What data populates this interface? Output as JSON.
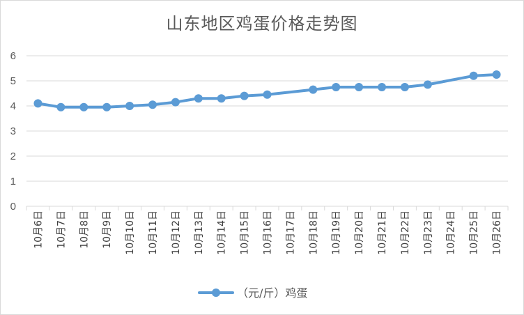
{
  "chart_data": {
    "type": "line",
    "title": "山东地区鸡蛋价格走势图",
    "categories": [
      "10月6日",
      "10月7日",
      "10月8日",
      "10月9日",
      "10月10日",
      "10月11日",
      "10月12日",
      "10月13日",
      "10月14日",
      "10月15日",
      "10月16日",
      "10月17日",
      "10月18日",
      "10月19日",
      "10月20日",
      "10月21日",
      "10月22日",
      "10月23日",
      "10月24日",
      "10月25日",
      "10月26日"
    ],
    "series": [
      {
        "name": "（元/斤）鸡蛋",
        "color": "#5b9bd5",
        "values": [
          4.1,
          3.95,
          3.95,
          3.95,
          4.0,
          4.05,
          4.15,
          4.3,
          4.3,
          4.4,
          4.45,
          null,
          4.65,
          4.75,
          4.75,
          4.75,
          4.75,
          4.85,
          null,
          5.2,
          5.25
        ]
      }
    ],
    "ylim": [
      0,
      6
    ],
    "yticks": [
      "0",
      "1",
      "2",
      "3",
      "4",
      "5",
      "6"
    ],
    "grid": true,
    "legend_position": "bottom"
  }
}
